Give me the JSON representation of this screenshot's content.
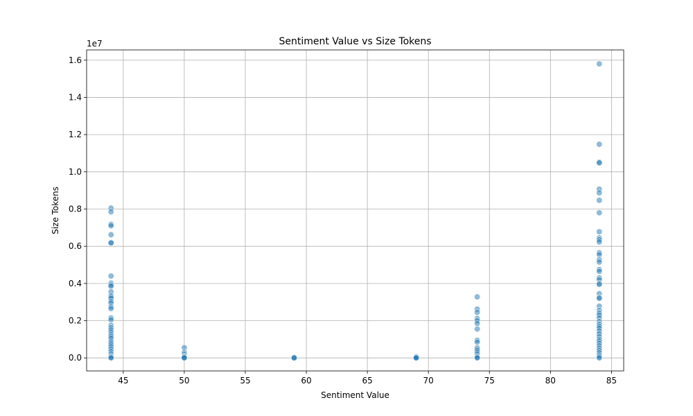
{
  "chart_data": {
    "type": "scatter",
    "title": "Sentiment Value vs Size Tokens",
    "xlabel": "Sentiment Value",
    "ylabel": "Size Tokens",
    "y_offset_label": "1e7",
    "xlim": [
      42.0,
      86.0
    ],
    "ylim": [
      -700000,
      16550000
    ],
    "x_ticks": [
      45,
      50,
      55,
      60,
      65,
      70,
      75,
      80,
      85
    ],
    "y_ticks": [
      0,
      2000000,
      4000000,
      6000000,
      8000000,
      10000000,
      12000000,
      14000000,
      16000000
    ],
    "y_tick_labels": [
      "0.0",
      "0.2",
      "0.4",
      "0.6",
      "0.8",
      "1.0",
      "1.2",
      "1.4",
      "1.6"
    ],
    "grid": true,
    "color": "#1f77b4",
    "series": [
      {
        "points": [
          [
            44,
            8050000
          ],
          [
            44,
            7850000
          ],
          [
            44,
            7180000
          ],
          [
            44,
            7100000
          ],
          [
            44,
            6620000
          ],
          [
            44,
            6200000
          ],
          [
            44,
            6180000
          ],
          [
            44,
            4400000
          ],
          [
            44,
            4020000
          ],
          [
            44,
            3920000
          ],
          [
            44,
            3850000
          ],
          [
            44,
            3550000
          ],
          [
            44,
            3350000
          ],
          [
            44,
            3280000
          ],
          [
            44,
            3200000
          ],
          [
            44,
            3050000
          ],
          [
            44,
            2950000
          ],
          [
            44,
            2750000
          ],
          [
            44,
            2650000
          ],
          [
            44,
            2150000
          ],
          [
            44,
            2050000
          ],
          [
            44,
            1750000
          ],
          [
            44,
            1620000
          ],
          [
            44,
            1500000
          ],
          [
            44,
            1380000
          ],
          [
            44,
            1250000
          ],
          [
            44,
            1150000
          ],
          [
            44,
            1050000
          ],
          [
            44,
            900000
          ],
          [
            44,
            800000
          ],
          [
            44,
            700000
          ],
          [
            44,
            600000
          ],
          [
            44,
            480000
          ],
          [
            44,
            350000
          ],
          [
            44,
            220000
          ],
          [
            44,
            100000
          ],
          [
            44,
            30000
          ],
          [
            44,
            0
          ],
          [
            50,
            550000
          ],
          [
            50,
            300000
          ],
          [
            50,
            200000
          ],
          [
            50,
            100000
          ],
          [
            50,
            50000
          ],
          [
            50,
            10000
          ],
          [
            50,
            0
          ],
          [
            59,
            30000
          ],
          [
            59,
            10000
          ],
          [
            59,
            0
          ],
          [
            69,
            80000
          ],
          [
            69,
            40000
          ],
          [
            69,
            10000
          ],
          [
            69,
            0
          ],
          [
            74,
            3280000
          ],
          [
            74,
            2620000
          ],
          [
            74,
            2450000
          ],
          [
            74,
            2120000
          ],
          [
            74,
            2000000
          ],
          [
            74,
            1850000
          ],
          [
            74,
            1550000
          ],
          [
            74,
            950000
          ],
          [
            74,
            850000
          ],
          [
            74,
            550000
          ],
          [
            74,
            480000
          ],
          [
            74,
            400000
          ],
          [
            74,
            300000
          ],
          [
            74,
            200000
          ],
          [
            74,
            100000
          ],
          [
            74,
            30000
          ],
          [
            74,
            0
          ],
          [
            84,
            15800000
          ],
          [
            84,
            11480000
          ],
          [
            84,
            10520000
          ],
          [
            84,
            10480000
          ],
          [
            84,
            9070000
          ],
          [
            84,
            8870000
          ],
          [
            84,
            8470000
          ],
          [
            84,
            7800000
          ],
          [
            84,
            6780000
          ],
          [
            84,
            6450000
          ],
          [
            84,
            6350000
          ],
          [
            84,
            6230000
          ],
          [
            84,
            5650000
          ],
          [
            84,
            5550000
          ],
          [
            84,
            5280000
          ],
          [
            84,
            5150000
          ],
          [
            84,
            4750000
          ],
          [
            84,
            4650000
          ],
          [
            84,
            4300000
          ],
          [
            84,
            4200000
          ],
          [
            84,
            4000000
          ],
          [
            84,
            3950000
          ],
          [
            84,
            3450000
          ],
          [
            84,
            3250000
          ],
          [
            84,
            3200000
          ],
          [
            84,
            2780000
          ],
          [
            84,
            2550000
          ],
          [
            84,
            2400000
          ],
          [
            84,
            2300000
          ],
          [
            84,
            2150000
          ],
          [
            84,
            1950000
          ],
          [
            84,
            1800000
          ],
          [
            84,
            1700000
          ],
          [
            84,
            1600000
          ],
          [
            84,
            1450000
          ],
          [
            84,
            1300000
          ],
          [
            84,
            1150000
          ],
          [
            84,
            1000000
          ],
          [
            84,
            900000
          ],
          [
            84,
            780000
          ],
          [
            84,
            650000
          ],
          [
            84,
            520000
          ],
          [
            84,
            400000
          ],
          [
            84,
            280000
          ],
          [
            84,
            150000
          ],
          [
            84,
            60000
          ],
          [
            84,
            0
          ]
        ]
      }
    ]
  }
}
